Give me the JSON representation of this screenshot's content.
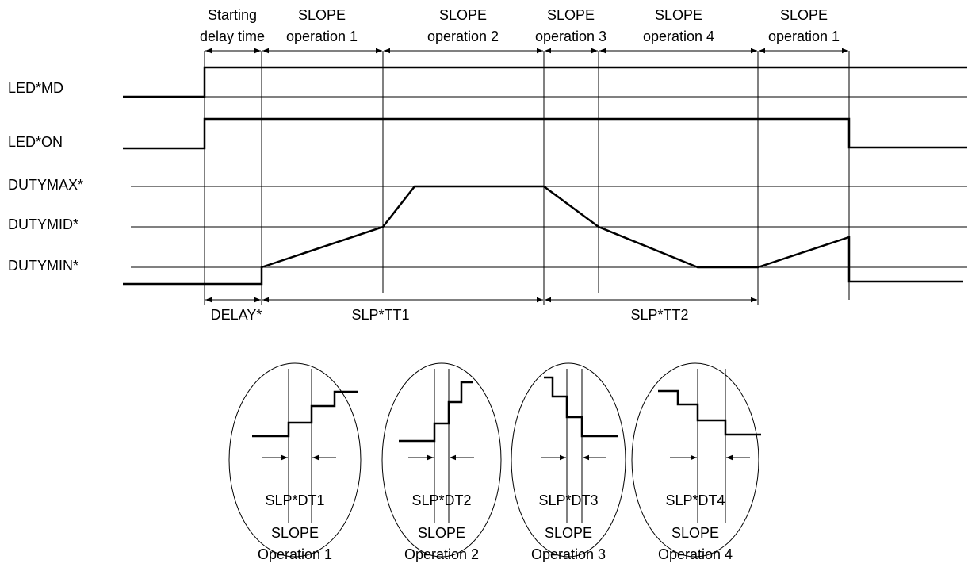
{
  "phases": [
    {
      "line1": "Starting",
      "line2": "delay time"
    },
    {
      "line1": "SLOPE",
      "line2": "operation 1"
    },
    {
      "line1": "SLOPE",
      "line2": "operation 2"
    },
    {
      "line1": "SLOPE",
      "line2": "operation 3"
    },
    {
      "line1": "SLOPE",
      "line2": "operation 4"
    },
    {
      "line1": "SLOPE",
      "line2": "operation 1"
    }
  ],
  "signals": [
    "LED*MD",
    "LED*ON",
    "DUTYMAX*",
    "DUTYMID*",
    "DUTYMIN*"
  ],
  "spans": [
    "DELAY*",
    "SLP*TT1",
    "SLP*TT2"
  ],
  "insets": [
    {
      "label": "SLP*DT1",
      "title": "SLOPE",
      "subtitle": "Operation 1"
    },
    {
      "label": "SLP*DT2",
      "title": "SLOPE",
      "subtitle": "Operation 2"
    },
    {
      "label": "SLP*DT3",
      "title": "SLOPE",
      "subtitle": "Operation 3"
    },
    {
      "label": "SLP*DT4",
      "title": "SLOPE",
      "subtitle": "Operation 4"
    }
  ]
}
